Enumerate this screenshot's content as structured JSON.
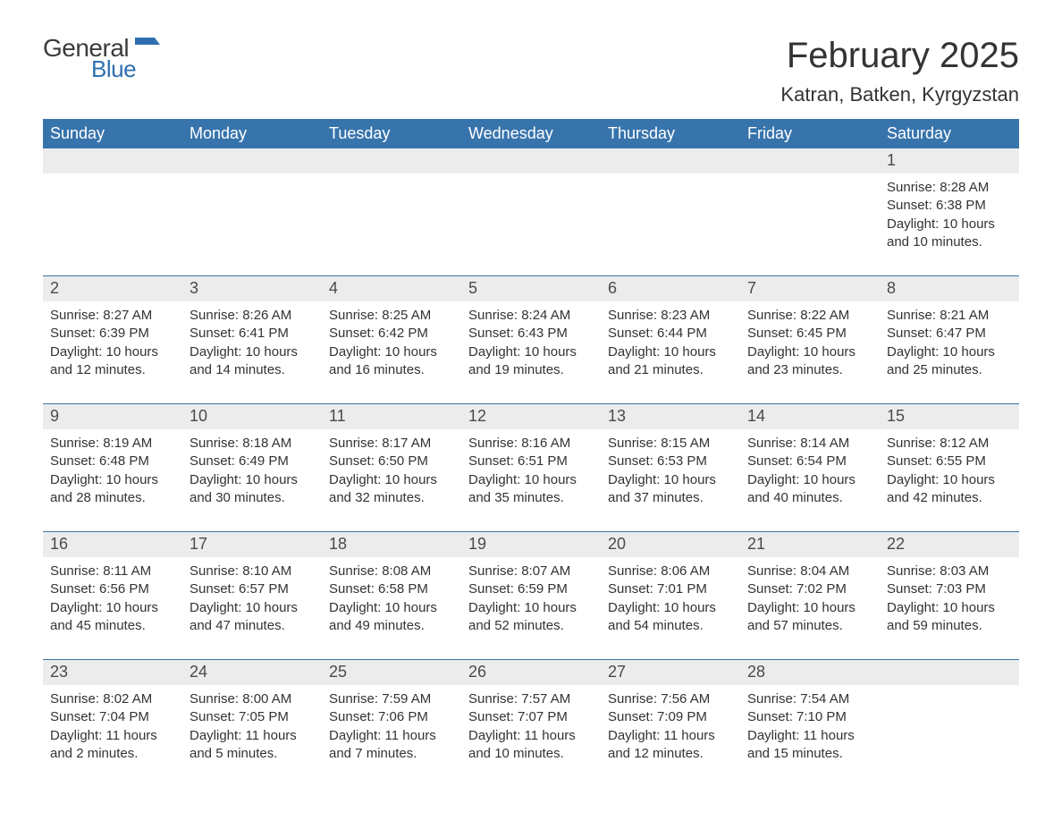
{
  "logo": {
    "general": "General",
    "blue": "Blue",
    "flag_color": "#2f6fb0"
  },
  "header": {
    "month_title": "February 2025",
    "location": "Katran, Batken, Kyrgyzstan"
  },
  "colors": {
    "header_bg": "#3874ac",
    "header_text": "#ffffff",
    "daynum_bg": "#ececec",
    "text": "#333333",
    "rule": "#3874ac",
    "page_bg": "#ffffff"
  },
  "typography": {
    "month_title_fontsize": 40,
    "location_fontsize": 22,
    "weekday_fontsize": 18,
    "daynum_fontsize": 18,
    "body_fontsize": 15
  },
  "weekdays": [
    "Sunday",
    "Monday",
    "Tuesday",
    "Wednesday",
    "Thursday",
    "Friday",
    "Saturday"
  ],
  "labels": {
    "sunrise": "Sunrise:",
    "sunset": "Sunset:",
    "daylight": "Daylight:"
  },
  "weeks": [
    {
      "days": [
        null,
        null,
        null,
        null,
        null,
        null,
        {
          "num": "1",
          "sunrise": "8:28 AM",
          "sunset": "6:38 PM",
          "daylight": "10 hours and 10 minutes."
        }
      ]
    },
    {
      "days": [
        {
          "num": "2",
          "sunrise": "8:27 AM",
          "sunset": "6:39 PM",
          "daylight": "10 hours and 12 minutes."
        },
        {
          "num": "3",
          "sunrise": "8:26 AM",
          "sunset": "6:41 PM",
          "daylight": "10 hours and 14 minutes."
        },
        {
          "num": "4",
          "sunrise": "8:25 AM",
          "sunset": "6:42 PM",
          "daylight": "10 hours and 16 minutes."
        },
        {
          "num": "5",
          "sunrise": "8:24 AM",
          "sunset": "6:43 PM",
          "daylight": "10 hours and 19 minutes."
        },
        {
          "num": "6",
          "sunrise": "8:23 AM",
          "sunset": "6:44 PM",
          "daylight": "10 hours and 21 minutes."
        },
        {
          "num": "7",
          "sunrise": "8:22 AM",
          "sunset": "6:45 PM",
          "daylight": "10 hours and 23 minutes."
        },
        {
          "num": "8",
          "sunrise": "8:21 AM",
          "sunset": "6:47 PM",
          "daylight": "10 hours and 25 minutes."
        }
      ]
    },
    {
      "days": [
        {
          "num": "9",
          "sunrise": "8:19 AM",
          "sunset": "6:48 PM",
          "daylight": "10 hours and 28 minutes."
        },
        {
          "num": "10",
          "sunrise": "8:18 AM",
          "sunset": "6:49 PM",
          "daylight": "10 hours and 30 minutes."
        },
        {
          "num": "11",
          "sunrise": "8:17 AM",
          "sunset": "6:50 PM",
          "daylight": "10 hours and 32 minutes."
        },
        {
          "num": "12",
          "sunrise": "8:16 AM",
          "sunset": "6:51 PM",
          "daylight": "10 hours and 35 minutes."
        },
        {
          "num": "13",
          "sunrise": "8:15 AM",
          "sunset": "6:53 PM",
          "daylight": "10 hours and 37 minutes."
        },
        {
          "num": "14",
          "sunrise": "8:14 AM",
          "sunset": "6:54 PM",
          "daylight": "10 hours and 40 minutes."
        },
        {
          "num": "15",
          "sunrise": "8:12 AM",
          "sunset": "6:55 PM",
          "daylight": "10 hours and 42 minutes."
        }
      ]
    },
    {
      "days": [
        {
          "num": "16",
          "sunrise": "8:11 AM",
          "sunset": "6:56 PM",
          "daylight": "10 hours and 45 minutes."
        },
        {
          "num": "17",
          "sunrise": "8:10 AM",
          "sunset": "6:57 PM",
          "daylight": "10 hours and 47 minutes."
        },
        {
          "num": "18",
          "sunrise": "8:08 AM",
          "sunset": "6:58 PM",
          "daylight": "10 hours and 49 minutes."
        },
        {
          "num": "19",
          "sunrise": "8:07 AM",
          "sunset": "6:59 PM",
          "daylight": "10 hours and 52 minutes."
        },
        {
          "num": "20",
          "sunrise": "8:06 AM",
          "sunset": "7:01 PM",
          "daylight": "10 hours and 54 minutes."
        },
        {
          "num": "21",
          "sunrise": "8:04 AM",
          "sunset": "7:02 PM",
          "daylight": "10 hours and 57 minutes."
        },
        {
          "num": "22",
          "sunrise": "8:03 AM",
          "sunset": "7:03 PM",
          "daylight": "10 hours and 59 minutes."
        }
      ]
    },
    {
      "days": [
        {
          "num": "23",
          "sunrise": "8:02 AM",
          "sunset": "7:04 PM",
          "daylight": "11 hours and 2 minutes."
        },
        {
          "num": "24",
          "sunrise": "8:00 AM",
          "sunset": "7:05 PM",
          "daylight": "11 hours and 5 minutes."
        },
        {
          "num": "25",
          "sunrise": "7:59 AM",
          "sunset": "7:06 PM",
          "daylight": "11 hours and 7 minutes."
        },
        {
          "num": "26",
          "sunrise": "7:57 AM",
          "sunset": "7:07 PM",
          "daylight": "11 hours and 10 minutes."
        },
        {
          "num": "27",
          "sunrise": "7:56 AM",
          "sunset": "7:09 PM",
          "daylight": "11 hours and 12 minutes."
        },
        {
          "num": "28",
          "sunrise": "7:54 AM",
          "sunset": "7:10 PM",
          "daylight": "11 hours and 15 minutes."
        },
        null
      ]
    }
  ]
}
